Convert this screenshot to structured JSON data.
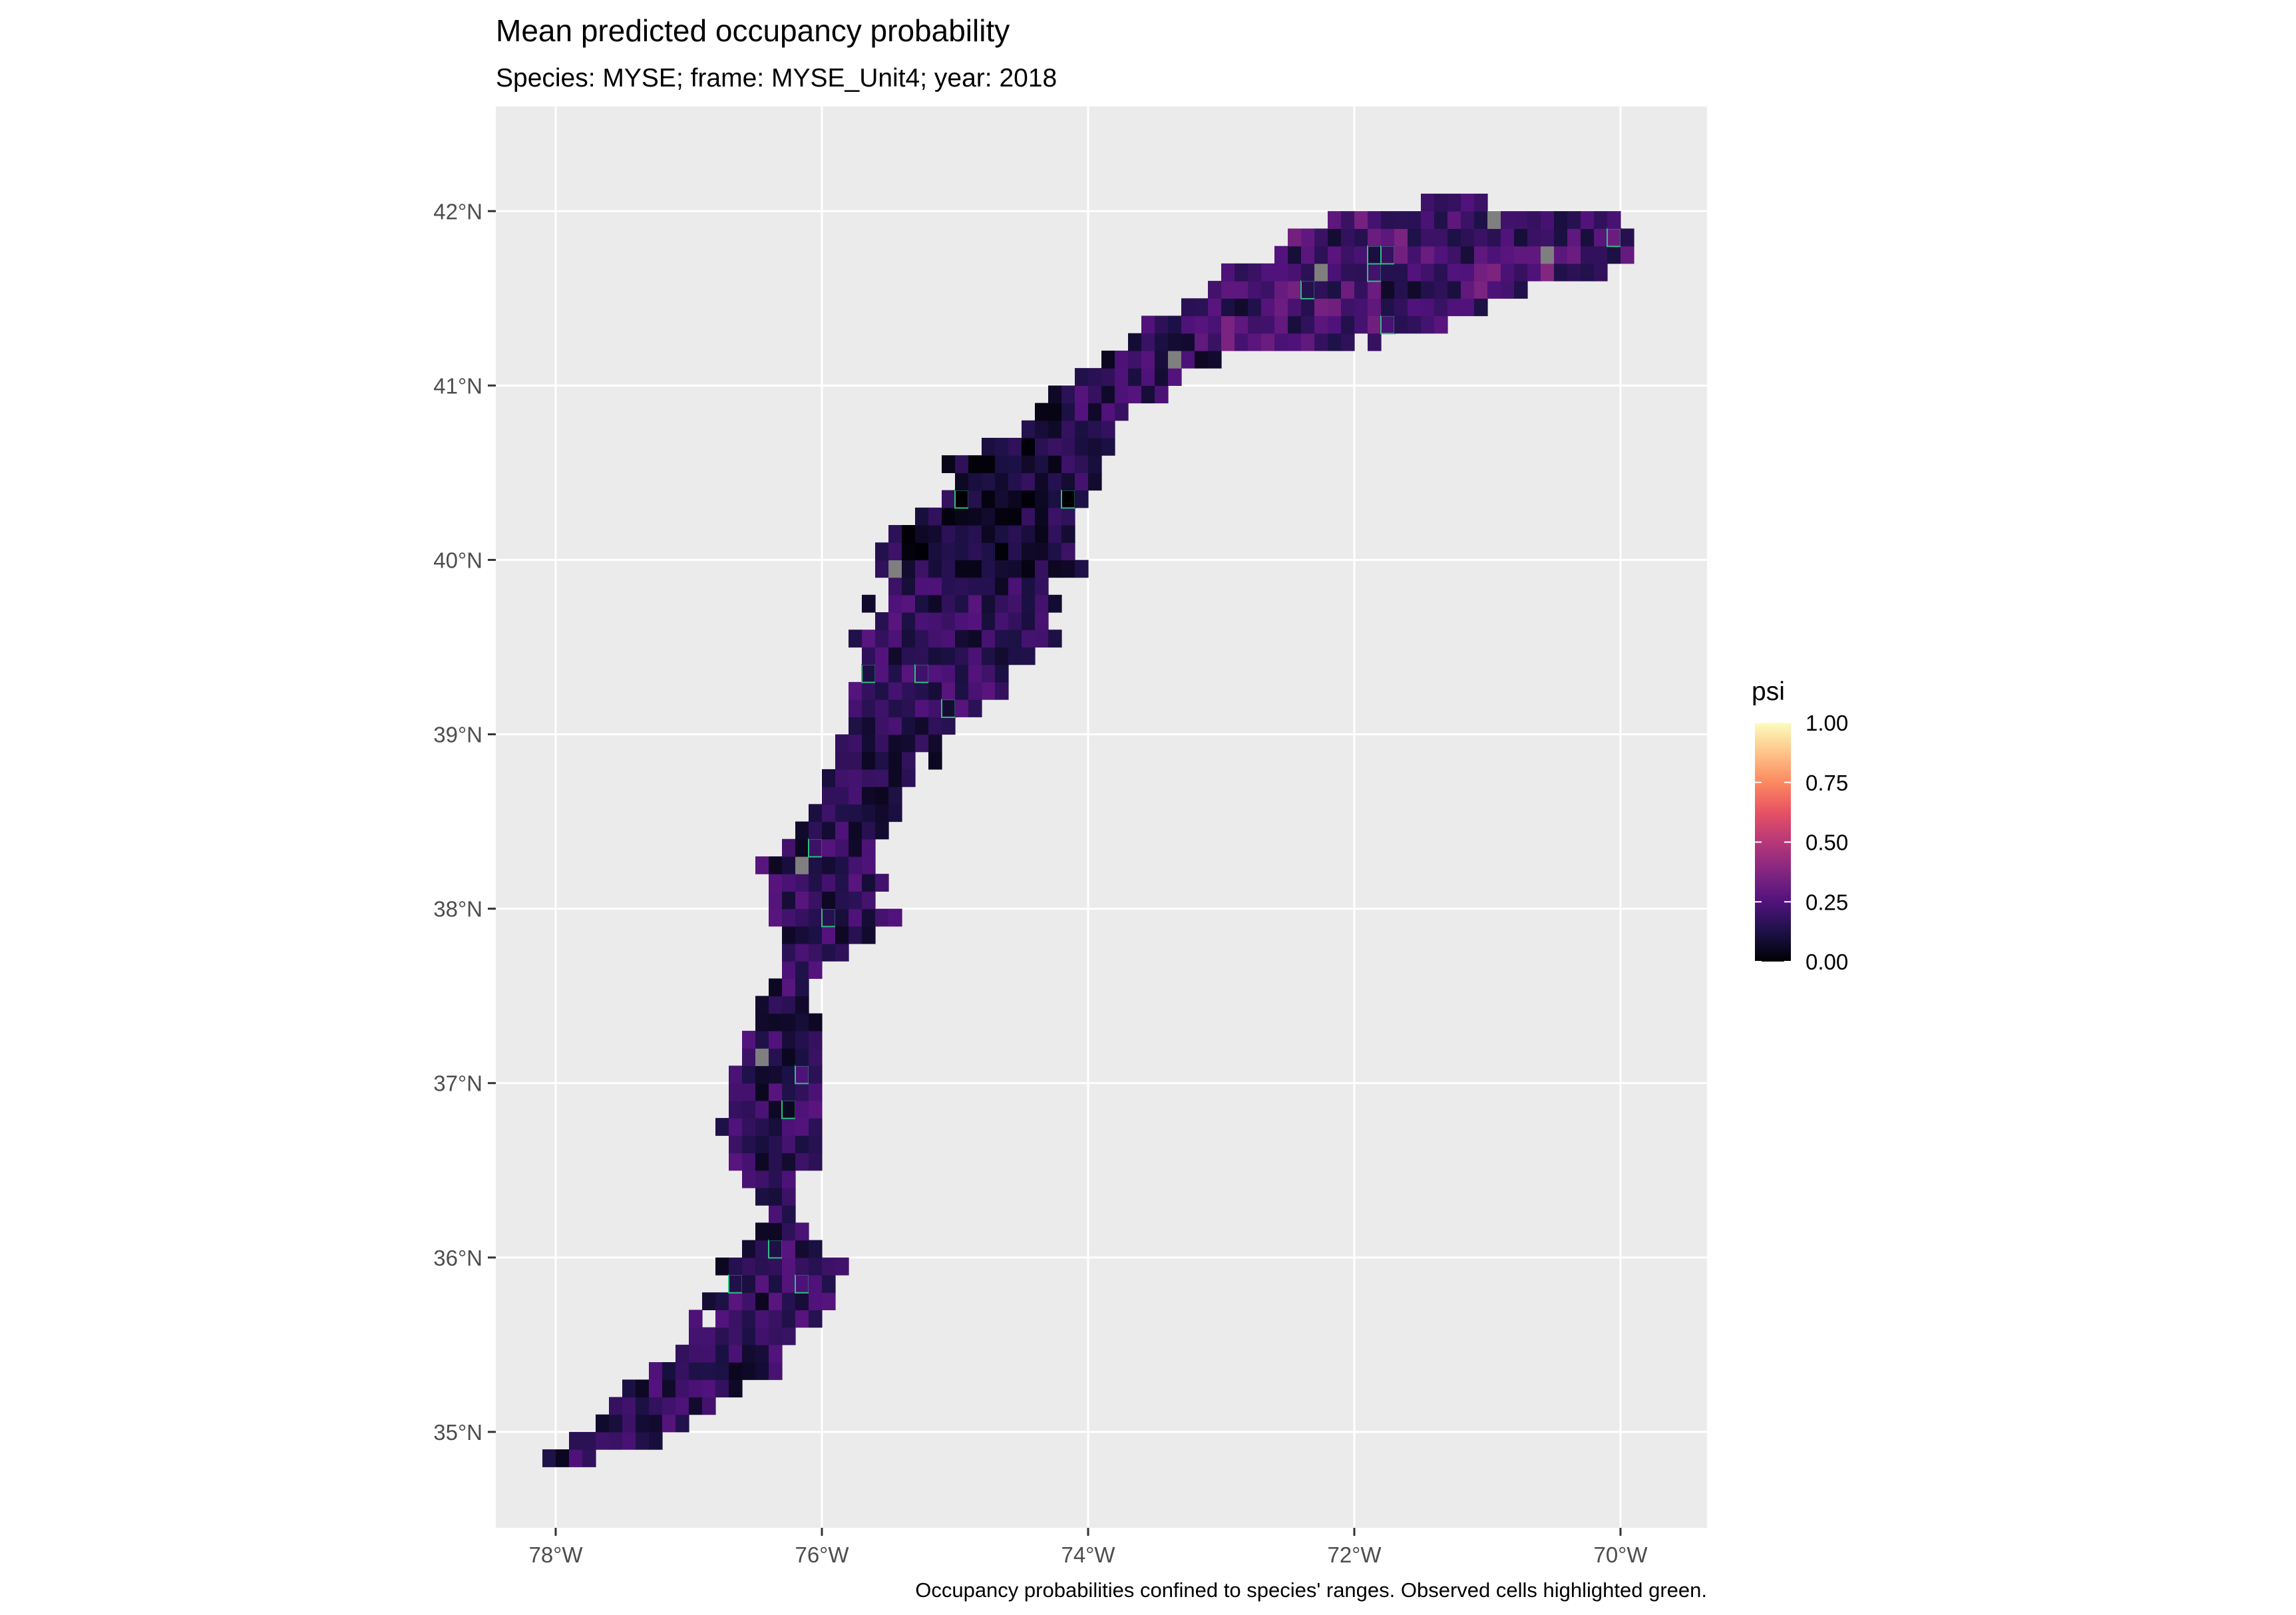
{
  "map": {
    "title": "Mean predicted occupancy probability",
    "subtitle": "Species: MYSE; frame: MYSE_Unit4; year: 2018",
    "caption": "Occupancy probabilities confined to species' ranges. Observed cells highlighted green.",
    "panel_background": "#ebebeb",
    "grid_color": "#ffffff",
    "missing_cell_color": "#7f7f7f",
    "observed_outline_color": "#2fbf7f",
    "lon_range": [
      -78.45,
      -69.35
    ],
    "lat_range": [
      34.45,
      42.6
    ],
    "lon_ticks": [
      {
        "value": -78,
        "label": "78°W"
      },
      {
        "value": -76,
        "label": "76°W"
      },
      {
        "value": -74,
        "label": "74°W"
      },
      {
        "value": -72,
        "label": "72°W"
      },
      {
        "value": -70,
        "label": "70°W"
      }
    ],
    "lat_ticks": [
      {
        "value": 35,
        "label": "35°N"
      },
      {
        "value": 36,
        "label": "36°N"
      },
      {
        "value": 37,
        "label": "37°N"
      },
      {
        "value": 38,
        "label": "38°N"
      },
      {
        "value": 39,
        "label": "39°N"
      },
      {
        "value": 40,
        "label": "40°N"
      },
      {
        "value": 41,
        "label": "41°N"
      },
      {
        "value": 42,
        "label": "42°N"
      }
    ]
  },
  "legend": {
    "title": "psi",
    "palette": "magma",
    "stops": [
      "#000004",
      "#1d1147",
      "#51127c",
      "#822681",
      "#b73779",
      "#e75263",
      "#fc8961",
      "#fec488",
      "#fcfdbf"
    ],
    "range": [
      0,
      1
    ],
    "ticks": [
      {
        "value": 1.0,
        "label": "1.00"
      },
      {
        "value": 0.75,
        "label": "0.75"
      },
      {
        "value": 0.5,
        "label": "0.50"
      },
      {
        "value": 0.25,
        "label": "0.25"
      },
      {
        "value": 0.0,
        "label": "0.00"
      }
    ]
  },
  "region": {
    "description_free": true,
    "band_axis": [
      [
        -78.0,
        34.82
      ],
      [
        -77.2,
        35.15
      ],
      [
        -76.6,
        35.55
      ],
      [
        -76.3,
        35.95
      ],
      [
        -76.35,
        36.3
      ],
      [
        -76.35,
        36.7
      ],
      [
        -76.3,
        37.2
      ],
      [
        -76.2,
        37.6
      ],
      [
        -76.0,
        38.05
      ],
      [
        -75.85,
        38.45
      ],
      [
        -75.55,
        38.9
      ],
      [
        -75.3,
        39.35
      ],
      [
        -74.95,
        39.8
      ],
      [
        -74.6,
        40.2
      ],
      [
        -74.2,
        40.6
      ],
      [
        -73.85,
        40.95
      ],
      [
        -73.3,
        41.25
      ],
      [
        -72.7,
        41.45
      ],
      [
        -72.0,
        41.6
      ],
      [
        -71.3,
        41.72
      ],
      [
        -70.6,
        41.8
      ],
      [
        -70.1,
        41.82
      ]
    ],
    "band_half_width": [
      0.08,
      0.25,
      0.32,
      0.42,
      0.08,
      0.42,
      0.3,
      0.12,
      0.5,
      0.3,
      0.32,
      0.5,
      0.75,
      0.6,
      0.35,
      0.25,
      0.25,
      0.35,
      0.5,
      0.45,
      0.3,
      0.2
    ],
    "cell_size_deg": [
      0.1,
      0.1
    ]
  }
}
